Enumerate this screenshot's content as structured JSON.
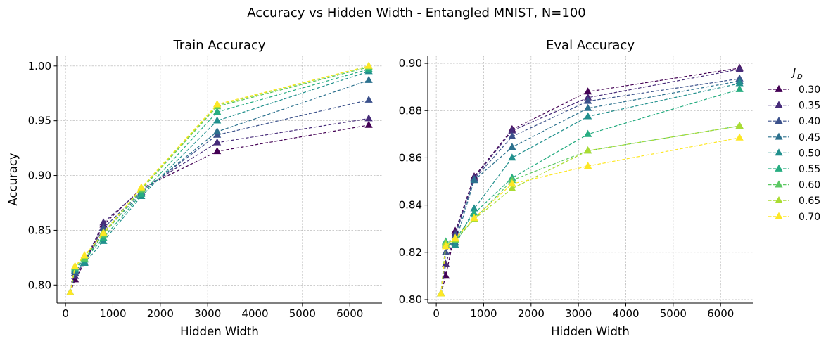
{
  "title": "Accuracy vs Hidden Width - Entangled MNIST, N=100",
  "legend": {
    "title_main": "J",
    "title_sub": "D",
    "placement": "right-outside",
    "entries": [
      "0.30",
      "0.35",
      "0.40",
      "0.45",
      "0.50",
      "0.55",
      "0.60",
      "0.65",
      "0.70"
    ]
  },
  "colors": [
    "#440154",
    "#472c7a",
    "#3b518b",
    "#2c718e",
    "#21908d",
    "#27ad81",
    "#5cc863",
    "#aadc32",
    "#fde725"
  ],
  "chart_data": [
    {
      "type": "line",
      "title": "Train Accuracy",
      "xlabel": "Hidden Width",
      "ylabel": "Accuracy",
      "xlim": [
        -180,
        6680
      ],
      "ylim": [
        0.7835,
        1.0095
      ],
      "xticks": [
        0,
        1000,
        2000,
        3000,
        4000,
        5000,
        6000
      ],
      "yticks": [
        0.8,
        0.85,
        0.9,
        0.95,
        1.0
      ],
      "ytick_labels": [
        "0.80",
        "0.85",
        "0.90",
        "0.95",
        "1.00"
      ],
      "grid": true,
      "x": [
        100,
        200,
        400,
        800,
        1600,
        3200,
        6400
      ],
      "series": [
        {
          "name": "0.30",
          "values": [
            0.793,
            0.805,
            0.82,
            0.855,
            0.888,
            0.922,
            0.946
          ]
        },
        {
          "name": "0.35",
          "values": [
            0.793,
            0.808,
            0.821,
            0.857,
            0.887,
            0.93,
            0.952
          ]
        },
        {
          "name": "0.40",
          "values": [
            0.793,
            0.811,
            0.82,
            0.852,
            0.885,
            0.937,
            0.969
          ]
        },
        {
          "name": "0.45",
          "values": [
            0.793,
            0.813,
            0.821,
            0.848,
            0.884,
            0.94,
            0.987
          ]
        },
        {
          "name": "0.50",
          "values": [
            0.793,
            0.814,
            0.82,
            0.84,
            0.881,
            0.95,
            0.995
          ]
        },
        {
          "name": "0.55",
          "values": [
            0.793,
            0.815,
            0.823,
            0.843,
            0.883,
            0.958,
            0.997
          ]
        },
        {
          "name": "0.60",
          "values": [
            0.793,
            0.816,
            0.824,
            0.846,
            0.887,
            0.963,
            0.999
          ]
        },
        {
          "name": "0.65",
          "values": [
            0.793,
            0.817,
            0.826,
            0.848,
            0.888,
            0.964,
            1.0
          ]
        },
        {
          "name": "0.70",
          "values": [
            0.793,
            0.817,
            0.827,
            0.847,
            0.889,
            0.965,
            1.0
          ]
        }
      ]
    },
    {
      "type": "line",
      "title": "Eval Accuracy",
      "xlabel": "Hidden Width",
      "ylabel": "",
      "xlim": [
        -180,
        6680
      ],
      "ylim": [
        0.7985,
        0.9033
      ],
      "xticks": [
        0,
        1000,
        2000,
        3000,
        4000,
        5000,
        6000
      ],
      "yticks": [
        0.8,
        0.82,
        0.84,
        0.86,
        0.88,
        0.9
      ],
      "ytick_labels": [
        "0.80",
        "0.82",
        "0.84",
        "0.86",
        "0.88",
        "0.90"
      ],
      "grid": true,
      "x": [
        100,
        200,
        400,
        800,
        1600,
        3200,
        6400
      ],
      "series": [
        {
          "name": "0.30",
          "values": [
            0.8025,
            0.81,
            0.829,
            0.852,
            0.872,
            0.888,
            0.898
          ]
        },
        {
          "name": "0.35",
          "values": [
            0.8025,
            0.815,
            0.828,
            0.8515,
            0.8715,
            0.8855,
            0.8975
          ]
        },
        {
          "name": "0.40",
          "values": [
            0.8025,
            0.82,
            0.827,
            0.851,
            0.869,
            0.884,
            0.8935
          ]
        },
        {
          "name": "0.45",
          "values": [
            0.8025,
            0.823,
            0.824,
            0.8505,
            0.8645,
            0.881,
            0.8925
          ]
        },
        {
          "name": "0.50",
          "values": [
            0.8025,
            0.824,
            0.823,
            0.8385,
            0.86,
            0.8775,
            0.8915
          ]
        },
        {
          "name": "0.55",
          "values": [
            0.8025,
            0.8245,
            0.8255,
            0.8365,
            0.8515,
            0.87,
            0.889
          ]
        },
        {
          "name": "0.60",
          "values": [
            0.8025,
            0.824,
            0.825,
            0.834,
            0.8505,
            0.863,
            0.8735
          ]
        },
        {
          "name": "0.65",
          "values": [
            0.8025,
            0.8235,
            0.8255,
            0.834,
            0.847,
            0.863,
            0.8735
          ]
        },
        {
          "name": "0.70",
          "values": [
            0.8025,
            0.8225,
            0.826,
            0.8345,
            0.849,
            0.8565,
            0.8685
          ]
        }
      ]
    }
  ]
}
